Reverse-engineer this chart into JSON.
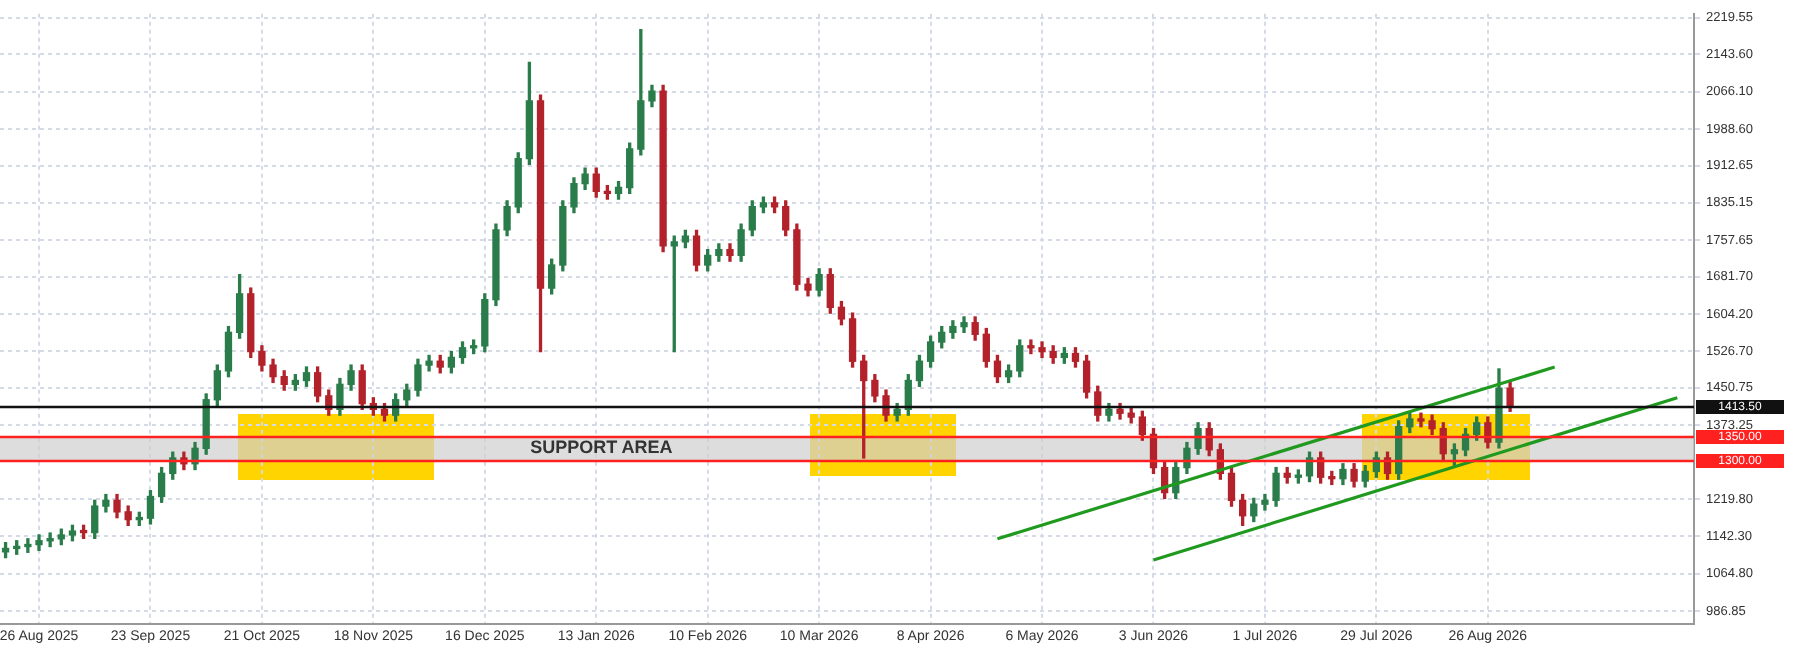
{
  "chart_data": {
    "type": "candlestick",
    "categories": [
      null,
      null,
      null,
      "26 Aug 2025",
      null,
      null,
      null,
      null,
      null,
      null,
      null,
      null,
      null,
      "23 Sep 2025",
      null,
      null,
      null,
      null,
      null,
      null,
      null,
      null,
      null,
      "21 Oct 2025",
      null,
      null,
      null,
      null,
      null,
      null,
      null,
      null,
      null,
      "18 Nov 2025",
      null,
      null,
      null,
      null,
      null,
      null,
      null,
      null,
      null,
      "16 Dec 2025",
      null,
      null,
      null,
      null,
      null,
      null,
      null,
      null,
      null,
      "13 Jan 2026",
      null,
      null,
      null,
      null,
      null,
      null,
      null,
      null,
      null,
      "10 Feb 2026",
      null,
      null,
      null,
      null,
      null,
      null,
      null,
      null,
      null,
      "10 Mar 2026",
      null,
      null,
      null,
      null,
      null,
      null,
      null,
      null,
      null,
      "8 Apr 2026",
      null,
      null,
      null,
      null,
      null,
      null,
      null,
      null,
      null,
      "6 May 2026",
      null,
      null,
      null,
      null,
      null,
      null,
      null,
      null,
      null,
      "3 Jun 2026",
      null,
      null,
      null,
      null,
      null,
      null,
      null,
      null,
      null,
      "1 Jul 2026",
      null,
      null,
      null,
      null,
      null,
      null,
      null,
      null,
      null,
      "29 Jul 2026",
      null,
      null,
      null,
      null,
      null,
      null,
      null,
      null,
      null,
      "26 Aug 2026",
      null,
      null,
      null,
      null,
      null,
      null,
      null,
      null,
      null,
      null,
      null,
      null,
      null,
      null,
      null,
      null,
      null,
      null
    ],
    "ohlc": [
      [
        1110,
        1129,
        1098,
        1117
      ],
      [
        1117,
        1133,
        1105,
        1121
      ],
      [
        1121,
        1137,
        1109,
        1125
      ],
      [
        1125,
        1145,
        1113,
        1133
      ],
      [
        1133,
        1149,
        1121,
        1137
      ],
      [
        1137,
        1157,
        1125,
        1145
      ],
      [
        1145,
        1165,
        1133,
        1153
      ],
      [
        1153,
        1165,
        1138,
        1150
      ],
      [
        1150,
        1217,
        1138,
        1205
      ],
      [
        1205,
        1229,
        1193,
        1217
      ],
      [
        1217,
        1229,
        1181,
        1193
      ],
      [
        1193,
        1205,
        1165,
        1177
      ],
      [
        1177,
        1192,
        1165,
        1180
      ],
      [
        1180,
        1237,
        1168,
        1225
      ],
      [
        1225,
        1285,
        1213,
        1273
      ],
      [
        1273,
        1317,
        1261,
        1305
      ],
      [
        1305,
        1317,
        1281,
        1293
      ],
      [
        1293,
        1337,
        1281,
        1325
      ],
      [
        1325,
        1438,
        1313,
        1426
      ],
      [
        1426,
        1498,
        1414,
        1486
      ],
      [
        1486,
        1578,
        1474,
        1566
      ],
      [
        1566,
        1686,
        1554,
        1646
      ],
      [
        1646,
        1658,
        1514,
        1526
      ],
      [
        1526,
        1538,
        1486,
        1498
      ],
      [
        1498,
        1510,
        1462,
        1474
      ],
      [
        1474,
        1486,
        1446,
        1458
      ],
      [
        1458,
        1478,
        1446,
        1466
      ],
      [
        1466,
        1494,
        1454,
        1482
      ],
      [
        1482,
        1494,
        1422,
        1434
      ],
      [
        1434,
        1446,
        1394,
        1406
      ],
      [
        1406,
        1470,
        1394,
        1458
      ],
      [
        1458,
        1498,
        1446,
        1486
      ],
      [
        1486,
        1498,
        1406,
        1418
      ],
      [
        1418,
        1430,
        1394,
        1406
      ],
      [
        1406,
        1418,
        1382,
        1394
      ],
      [
        1394,
        1438,
        1382,
        1426
      ],
      [
        1426,
        1458,
        1414,
        1446
      ],
      [
        1446,
        1510,
        1434,
        1498
      ],
      [
        1498,
        1518,
        1486,
        1506
      ],
      [
        1506,
        1518,
        1482,
        1494
      ],
      [
        1494,
        1526,
        1482,
        1514
      ],
      [
        1514,
        1546,
        1502,
        1534
      ],
      [
        1534,
        1550,
        1522,
        1538
      ],
      [
        1538,
        1646,
        1526,
        1634
      ],
      [
        1634,
        1791,
        1622,
        1779
      ],
      [
        1779,
        1839,
        1767,
        1827
      ],
      [
        1827,
        1939,
        1815,
        1927
      ],
      [
        1927,
        2127,
        1915,
        2047
      ],
      [
        2047,
        2059,
        1526,
        1658
      ],
      [
        1658,
        1718,
        1646,
        1706
      ],
      [
        1706,
        1839,
        1694,
        1827
      ],
      [
        1827,
        1887,
        1815,
        1875
      ],
      [
        1875,
        1907,
        1863,
        1895
      ],
      [
        1895,
        1907,
        1847,
        1859
      ],
      [
        1859,
        1871,
        1843,
        1855
      ],
      [
        1855,
        1879,
        1843,
        1867
      ],
      [
        1867,
        1959,
        1855,
        1947
      ],
      [
        1947,
        2195,
        1935,
        2047
      ],
      [
        2047,
        2079,
        2035,
        2067
      ],
      [
        2067,
        2079,
        1734,
        1746
      ],
      [
        1746,
        1766,
        1526,
        1754
      ],
      [
        1754,
        1778,
        1742,
        1766
      ],
      [
        1766,
        1778,
        1694,
        1706
      ],
      [
        1706,
        1738,
        1694,
        1726
      ],
      [
        1726,
        1750,
        1714,
        1738
      ],
      [
        1738,
        1750,
        1714,
        1726
      ],
      [
        1726,
        1791,
        1714,
        1779
      ],
      [
        1779,
        1839,
        1767,
        1827
      ],
      [
        1827,
        1847,
        1815,
        1835
      ],
      [
        1835,
        1847,
        1815,
        1827
      ],
      [
        1827,
        1839,
        1767,
        1779
      ],
      [
        1779,
        1791,
        1654,
        1666
      ],
      [
        1666,
        1678,
        1642,
        1654
      ],
      [
        1654,
        1698,
        1642,
        1686
      ],
      [
        1686,
        1698,
        1606,
        1618
      ],
      [
        1618,
        1630,
        1582,
        1594
      ],
      [
        1594,
        1606,
        1494,
        1506
      ],
      [
        1506,
        1518,
        1305,
        1466
      ],
      [
        1466,
        1478,
        1422,
        1434
      ],
      [
        1434,
        1446,
        1382,
        1394
      ],
      [
        1394,
        1418,
        1382,
        1406
      ],
      [
        1406,
        1478,
        1394,
        1466
      ],
      [
        1466,
        1518,
        1454,
        1506
      ],
      [
        1506,
        1558,
        1494,
        1546
      ],
      [
        1546,
        1578,
        1534,
        1566
      ],
      [
        1566,
        1590,
        1554,
        1578
      ],
      [
        1578,
        1598,
        1566,
        1586
      ],
      [
        1586,
        1598,
        1550,
        1562
      ],
      [
        1562,
        1574,
        1494,
        1506
      ],
      [
        1506,
        1518,
        1462,
        1474
      ],
      [
        1474,
        1498,
        1462,
        1486
      ],
      [
        1486,
        1550,
        1474,
        1538
      ],
      [
        1538,
        1550,
        1522,
        1534
      ],
      [
        1534,
        1546,
        1514,
        1526
      ],
      [
        1526,
        1538,
        1502,
        1514
      ],
      [
        1514,
        1534,
        1502,
        1522
      ],
      [
        1522,
        1534,
        1494,
        1506
      ],
      [
        1506,
        1518,
        1430,
        1442
      ],
      [
        1442,
        1454,
        1382,
        1394
      ],
      [
        1394,
        1418,
        1382,
        1406
      ],
      [
        1406,
        1418,
        1386,
        1398
      ],
      [
        1398,
        1410,
        1378,
        1390
      ],
      [
        1390,
        1402,
        1342,
        1354
      ],
      [
        1354,
        1366,
        1273,
        1285
      ],
      [
        1285,
        1297,
        1221,
        1233
      ],
      [
        1233,
        1297,
        1221,
        1285
      ],
      [
        1285,
        1337,
        1273,
        1325
      ],
      [
        1325,
        1378,
        1313,
        1366
      ],
      [
        1366,
        1378,
        1310,
        1322
      ],
      [
        1322,
        1334,
        1261,
        1273
      ],
      [
        1273,
        1285,
        1205,
        1217
      ],
      [
        1217,
        1229,
        1165,
        1185
      ],
      [
        1185,
        1221,
        1173,
        1209
      ],
      [
        1209,
        1229,
        1197,
        1217
      ],
      [
        1217,
        1285,
        1205,
        1273
      ],
      [
        1273,
        1285,
        1253,
        1265
      ],
      [
        1265,
        1280,
        1253,
        1268
      ],
      [
        1268,
        1317,
        1256,
        1305
      ],
      [
        1305,
        1317,
        1253,
        1265
      ],
      [
        1265,
        1277,
        1250,
        1262
      ],
      [
        1262,
        1293,
        1250,
        1281
      ],
      [
        1281,
        1293,
        1245,
        1257
      ],
      [
        1257,
        1289,
        1245,
        1277
      ],
      [
        1277,
        1317,
        1265,
        1305
      ],
      [
        1305,
        1317,
        1261,
        1273
      ],
      [
        1273,
        1382,
        1261,
        1370
      ],
      [
        1370,
        1398,
        1358,
        1386
      ],
      [
        1386,
        1398,
        1370,
        1382
      ],
      [
        1382,
        1394,
        1354,
        1366
      ],
      [
        1366,
        1378,
        1302,
        1314
      ],
      [
        1314,
        1334,
        1290,
        1322
      ],
      [
        1322,
        1366,
        1310,
        1354
      ],
      [
        1354,
        1390,
        1342,
        1378
      ],
      [
        1378,
        1390,
        1326,
        1338
      ],
      [
        1338,
        1490,
        1326,
        1450
      ],
      [
        1450,
        1462,
        1402,
        1414
      ],
      null,
      null,
      null,
      null,
      null,
      null,
      null,
      null,
      null,
      null,
      null,
      null,
      null,
      null,
      null,
      null
    ],
    "series": [
      {
        "type": "line",
        "color": "#1f9a1f",
        "values": [
          null,
          null,
          null,
          null,
          null,
          null,
          null,
          null,
          null,
          null,
          null,
          null,
          null,
          null,
          null,
          null,
          null,
          null,
          null,
          null,
          null,
          null,
          null,
          null,
          null,
          null,
          null,
          null,
          null,
          null,
          null,
          null,
          null,
          null,
          null,
          null,
          null,
          null,
          null,
          null,
          null,
          null,
          null,
          null,
          null,
          null,
          null,
          null,
          null,
          null,
          null,
          null,
          null,
          null,
          null,
          null,
          null,
          null,
          null,
          null,
          null,
          null,
          null,
          null,
          null,
          null,
          null,
          null,
          null,
          null,
          null,
          null,
          null,
          null,
          null,
          null,
          null,
          null,
          null,
          null,
          null,
          null,
          null,
          null,
          null,
          null,
          null,
          null,
          null,
          1137,
          null,
          null,
          null,
          null,
          null,
          null,
          null,
          null,
          null,
          null,
          null,
          null,
          null,
          null,
          null,
          null,
          null,
          null,
          null,
          null,
          null,
          null,
          null,
          null,
          null,
          null,
          null,
          null,
          null,
          null,
          null,
          null,
          null,
          null,
          null,
          null,
          null,
          null,
          null,
          null,
          null,
          null,
          null,
          null,
          null,
          null,
          null,
          null,
          null,
          1494,
          null,
          null,
          null,
          null,
          null,
          null,
          null,
          null,
          null,
          null,
          null,
          null
        ]
      },
      {
        "type": "line",
        "color": "#1f9a1f",
        "values": [
          null,
          null,
          null,
          null,
          null,
          null,
          null,
          null,
          null,
          null,
          null,
          null,
          null,
          null,
          null,
          null,
          null,
          null,
          null,
          null,
          null,
          null,
          null,
          null,
          null,
          null,
          null,
          null,
          null,
          null,
          null,
          null,
          null,
          null,
          null,
          null,
          null,
          null,
          null,
          null,
          null,
          null,
          null,
          null,
          null,
          null,
          null,
          null,
          null,
          null,
          null,
          null,
          null,
          null,
          null,
          null,
          null,
          null,
          null,
          null,
          null,
          null,
          null,
          null,
          null,
          null,
          null,
          null,
          null,
          null,
          null,
          null,
          null,
          null,
          null,
          null,
          null,
          null,
          null,
          null,
          null,
          null,
          null,
          null,
          null,
          null,
          null,
          null,
          null,
          null,
          null,
          null,
          null,
          null,
          null,
          null,
          null,
          null,
          null,
          null,
          null,
          null,
          null,
          1093,
          null,
          null,
          null,
          null,
          null,
          null,
          null,
          null,
          null,
          null,
          null,
          null,
          null,
          null,
          null,
          null,
          null,
          null,
          null,
          null,
          null,
          null,
          null,
          null,
          null,
          null,
          null,
          null,
          null,
          null,
          null,
          null,
          null,
          null,
          null,
          null,
          null,
          null,
          null,
          null,
          null,
          null,
          null,
          null,
          null,
          null,
          1430,
          null
        ]
      }
    ],
    "ylim": [
      960,
      2228
    ],
    "yticks": [
      {
        "value": 986.85,
        "label": "986.85"
      },
      {
        "value": 1064.8,
        "label": "1064.80"
      },
      {
        "value": 1142.3,
        "label": "1142.30"
      },
      {
        "value": 1219.8,
        "label": "1219.80"
      },
      {
        "value": 1373.25,
        "label": "1373.25"
      },
      {
        "value": 1450.75,
        "label": "1450.75"
      },
      {
        "value": 1526.7,
        "label": "1526.70"
      },
      {
        "value": 1604.2,
        "label": "1604.20"
      },
      {
        "value": 1681.7,
        "label": "1681.70"
      },
      {
        "value": 1757.65,
        "label": "1757.65"
      },
      {
        "value": 1835.15,
        "label": "1835.15"
      },
      {
        "value": 1912.65,
        "label": "1912.65"
      },
      {
        "value": 1988.6,
        "label": "1988.60"
      },
      {
        "value": 2066.1,
        "label": "2066.10"
      },
      {
        "value": 2143.6,
        "label": "2143.60"
      },
      {
        "value": 2219.55,
        "label": "2219.55"
      }
    ],
    "ref_lines": [
      {
        "axis": "y",
        "value": 1350,
        "label": "1350.00",
        "color": "#ff2020"
      },
      {
        "axis": "y",
        "value": 1300,
        "label": "1300.00",
        "color": "#ff2020"
      },
      {
        "axis": "y",
        "value": 1413.5,
        "label": "1413.50",
        "color": "#111111"
      }
    ],
    "bands": [
      {
        "axis": "y",
        "from": 1300,
        "to": 1350,
        "label": "SUPPORT AREA",
        "color": "#cfcfcf"
      }
    ],
    "grid": true
  }
}
